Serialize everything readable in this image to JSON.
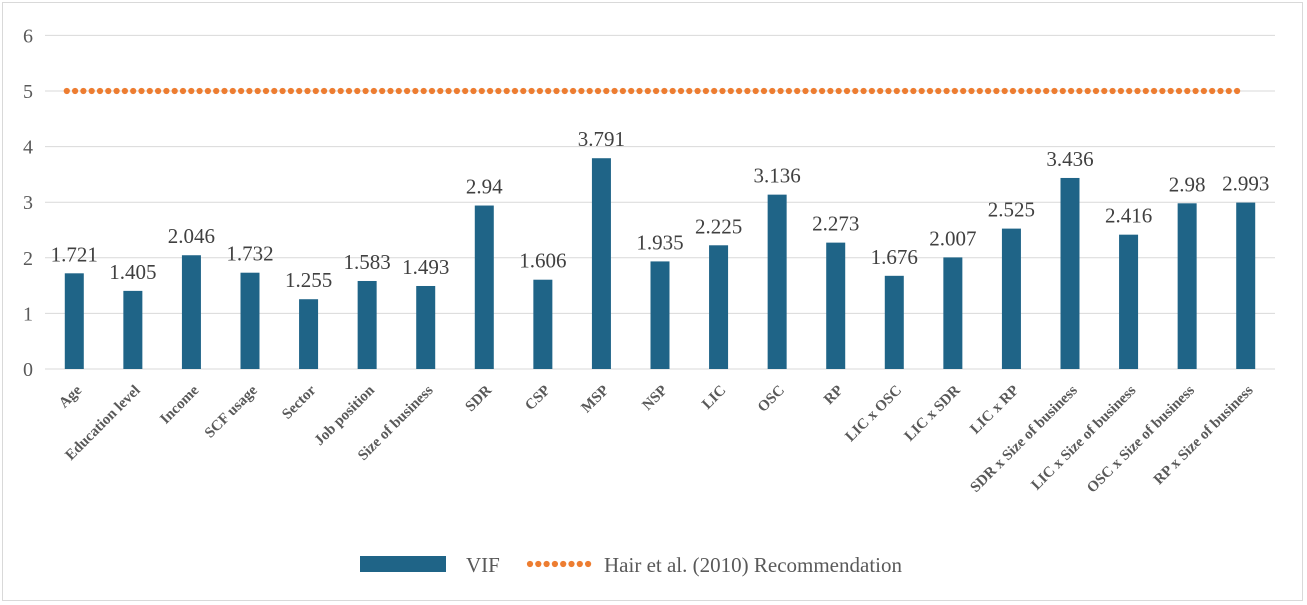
{
  "chart_data": {
    "type": "bar",
    "categories": [
      "Age",
      "Education level",
      "Income",
      "SCF usage",
      "Sector",
      "Job position",
      "Size of business",
      "SDR",
      "CSP",
      "MSP",
      "NSP",
      "LIC",
      "OSC",
      "RP",
      "LIC x OSC",
      "LIC x SDR",
      "LIC x RP",
      "SDR x Size of business",
      "LIC x Size of business",
      "OSC x Size of business",
      "RP x Size of business"
    ],
    "series": [
      {
        "name": "VIF",
        "type": "bar",
        "color": "#1f6487",
        "values": [
          1.721,
          1.405,
          2.046,
          1.732,
          1.255,
          1.583,
          1.493,
          2.94,
          1.606,
          3.791,
          1.935,
          2.225,
          3.136,
          2.273,
          1.676,
          2.007,
          2.525,
          3.436,
          2.416,
          2.98,
          2.993
        ],
        "labels": [
          "1.721",
          "1.405",
          "2.046",
          "1.732",
          "1.255",
          "1.583",
          "1.493",
          "2.94",
          "1.606",
          "3.791",
          "1.935",
          "2.225",
          "3.136",
          "2.273",
          "1.676",
          "2.007",
          "2.525",
          "3.436",
          "2.416",
          "2.98",
          "2.993"
        ]
      },
      {
        "name": "Hair et al. (2010) Recommendation",
        "type": "line",
        "style": "dotted",
        "color": "#ed7d31",
        "values": [
          5,
          5,
          5,
          5,
          5,
          5,
          5,
          5,
          5,
          5,
          5,
          5,
          5,
          5,
          5,
          5,
          5,
          5,
          5,
          5,
          5
        ]
      }
    ],
    "ylim": [
      0,
      6
    ],
    "yticks": [
      "0",
      "1",
      "2",
      "3",
      "4",
      "5",
      "6"
    ],
    "title": "",
    "xlabel": "",
    "ylabel": "",
    "grid": "horizontal",
    "legend": "bottom-center"
  }
}
